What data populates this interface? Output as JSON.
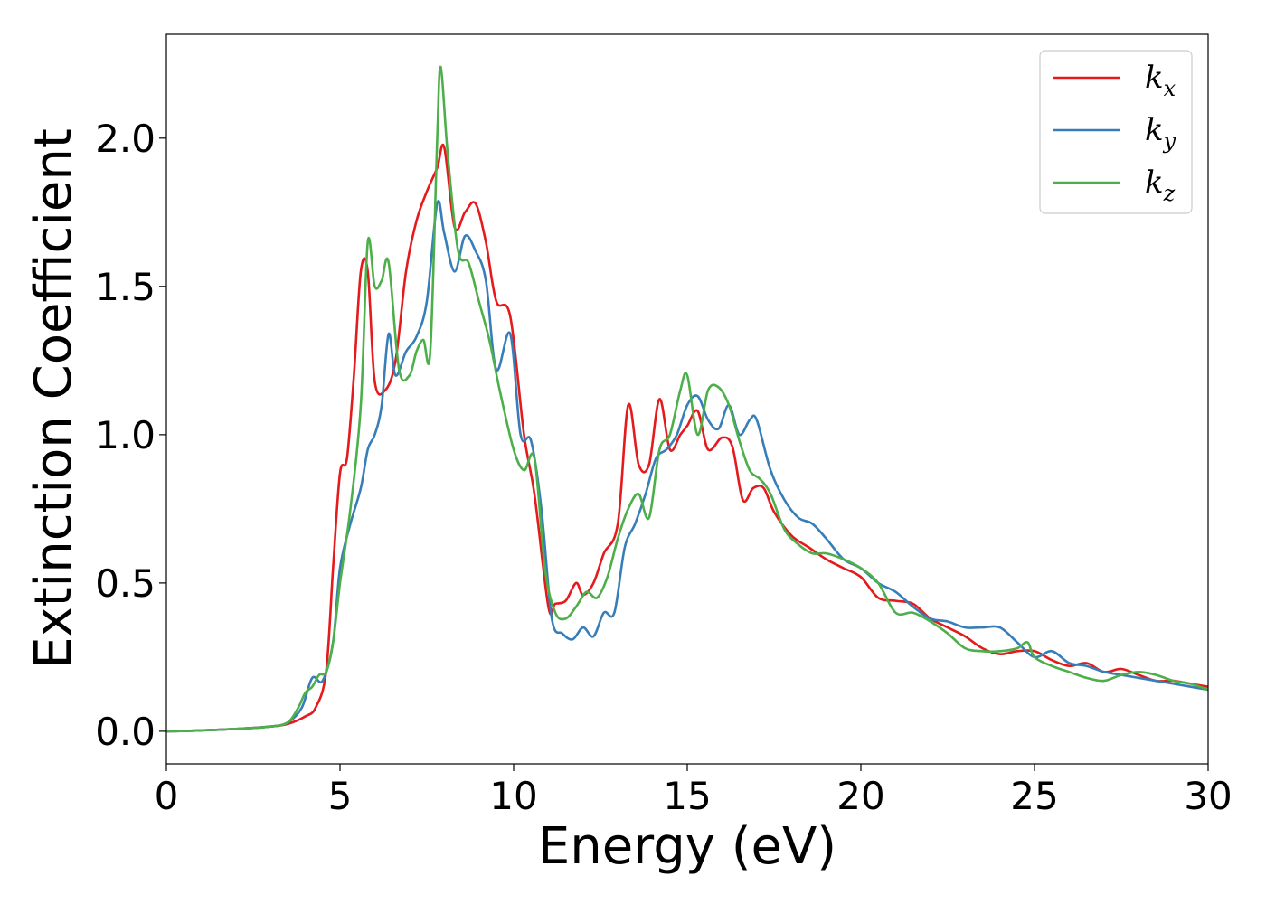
{
  "chart_data": {
    "type": "line",
    "xlabel": "Energy (eV)",
    "ylabel": "Extinction Coefficient",
    "xlim": [
      0,
      30
    ],
    "ylim": [
      -0.11,
      2.35
    ],
    "xticks": [
      0,
      5,
      10,
      15,
      20,
      25,
      30
    ],
    "xtick_labels": [
      "0",
      "5",
      "10",
      "15",
      "20",
      "25",
      "30"
    ],
    "yticks": [
      0.0,
      0.5,
      1.0,
      1.5,
      2.0
    ],
    "ytick_labels": [
      "0.0",
      "0.5",
      "1.0",
      "1.5",
      "2.0"
    ],
    "grid": false,
    "legend_position": "top-right",
    "series": [
      {
        "name": "k_x",
        "legend_base": "k",
        "legend_sub": "x",
        "color": "#e41a1c",
        "x": [
          0,
          1,
          2,
          3,
          3.5,
          4.0,
          4.3,
          4.6,
          4.8,
          5.0,
          5.2,
          5.4,
          5.6,
          5.8,
          6.0,
          6.3,
          6.6,
          6.9,
          7.2,
          7.5,
          7.8,
          8.0,
          8.3,
          8.6,
          8.9,
          9.2,
          9.5,
          9.9,
          10.3,
          10.6,
          11.0,
          11.2,
          11.5,
          11.8,
          12.0,
          12.3,
          12.6,
          13.0,
          13.3,
          13.6,
          13.9,
          14.2,
          14.5,
          14.8,
          15.0,
          15.3,
          15.6,
          16.0,
          16.3,
          16.6,
          16.9,
          17.2,
          17.5,
          18.0,
          18.5,
          19.0,
          19.5,
          20.0,
          20.5,
          21.0,
          21.5,
          22.0,
          22.5,
          23.0,
          23.5,
          24.0,
          24.5,
          25.0,
          25.5,
          26.0,
          26.5,
          27.0,
          27.5,
          28.0,
          28.5,
          29.0,
          29.5,
          30.0
        ],
        "y": [
          0.0,
          0.003,
          0.008,
          0.016,
          0.025,
          0.05,
          0.08,
          0.2,
          0.55,
          0.87,
          0.92,
          1.2,
          1.55,
          1.55,
          1.18,
          1.15,
          1.25,
          1.55,
          1.72,
          1.82,
          1.9,
          1.97,
          1.7,
          1.75,
          1.78,
          1.65,
          1.45,
          1.4,
          1.0,
          0.8,
          0.42,
          0.43,
          0.44,
          0.5,
          0.46,
          0.5,
          0.6,
          0.7,
          1.1,
          0.9,
          0.9,
          1.12,
          0.95,
          1.0,
          1.03,
          1.08,
          0.95,
          0.99,
          0.96,
          0.78,
          0.82,
          0.82,
          0.74,
          0.66,
          0.62,
          0.58,
          0.55,
          0.52,
          0.45,
          0.44,
          0.43,
          0.38,
          0.35,
          0.32,
          0.28,
          0.26,
          0.27,
          0.27,
          0.24,
          0.22,
          0.23,
          0.2,
          0.21,
          0.19,
          0.17,
          0.17,
          0.16,
          0.15
        ]
      },
      {
        "name": "k_y",
        "legend_base": "k",
        "legend_sub": "y",
        "color": "#377eb8",
        "x": [
          0,
          1,
          2,
          3,
          3.5,
          3.9,
          4.2,
          4.5,
          4.8,
          5.0,
          5.3,
          5.6,
          5.8,
          6.0,
          6.2,
          6.4,
          6.6,
          6.9,
          7.2,
          7.5,
          7.8,
          8.0,
          8.3,
          8.6,
          8.9,
          9.2,
          9.5,
          9.9,
          10.2,
          10.5,
          10.8,
          11.1,
          11.4,
          11.7,
          12.0,
          12.3,
          12.6,
          12.9,
          13.2,
          13.5,
          13.8,
          14.1,
          14.4,
          14.7,
          15.0,
          15.3,
          15.6,
          15.9,
          16.2,
          16.5,
          16.8,
          17.0,
          17.4,
          17.8,
          18.2,
          18.6,
          19.0,
          19.5,
          20.0,
          20.5,
          21.0,
          21.5,
          22.0,
          22.5,
          23.0,
          23.5,
          24.0,
          24.5,
          25.0,
          25.5,
          26.0,
          26.5,
          27.0,
          27.5,
          28.0,
          28.5,
          29.0,
          29.5,
          30.0
        ],
        "y": [
          0.0,
          0.003,
          0.008,
          0.016,
          0.03,
          0.08,
          0.18,
          0.17,
          0.3,
          0.55,
          0.7,
          0.82,
          0.95,
          1.0,
          1.1,
          1.34,
          1.2,
          1.28,
          1.33,
          1.45,
          1.78,
          1.68,
          1.55,
          1.67,
          1.62,
          1.52,
          1.22,
          1.34,
          1.0,
          0.98,
          0.75,
          0.38,
          0.33,
          0.31,
          0.35,
          0.32,
          0.4,
          0.4,
          0.62,
          0.7,
          0.8,
          0.92,
          0.95,
          1.0,
          1.1,
          1.13,
          1.05,
          1.02,
          1.1,
          1.0,
          1.05,
          1.05,
          0.88,
          0.78,
          0.72,
          0.7,
          0.65,
          0.58,
          0.55,
          0.5,
          0.47,
          0.42,
          0.38,
          0.37,
          0.35,
          0.35,
          0.35,
          0.3,
          0.25,
          0.27,
          0.23,
          0.22,
          0.2,
          0.19,
          0.18,
          0.17,
          0.16,
          0.15,
          0.14
        ]
      },
      {
        "name": "k_z",
        "legend_base": "k",
        "legend_sub": "z",
        "color": "#4daf4a",
        "x": [
          0,
          1,
          2,
          3,
          3.5,
          3.8,
          4.0,
          4.2,
          4.4,
          4.6,
          4.8,
          5.0,
          5.3,
          5.6,
          5.8,
          6.0,
          6.2,
          6.4,
          6.7,
          7.0,
          7.2,
          7.4,
          7.6,
          7.8,
          7.9,
          8.1,
          8.4,
          8.7,
          9.0,
          9.3,
          9.6,
          10.0,
          10.3,
          10.6,
          10.9,
          11.2,
          11.5,
          11.8,
          12.1,
          12.4,
          12.7,
          13.0,
          13.3,
          13.6,
          13.9,
          14.2,
          14.5,
          14.8,
          15.0,
          15.3,
          15.6,
          15.9,
          16.2,
          16.5,
          16.8,
          17.1,
          17.4,
          17.8,
          18.2,
          18.6,
          19.0,
          19.5,
          20.0,
          20.5,
          21.0,
          21.5,
          22.0,
          22.5,
          23.0,
          23.5,
          24.0,
          24.5,
          24.8,
          25.0,
          25.5,
          26.0,
          26.5,
          27.0,
          27.5,
          28.0,
          28.5,
          29.0,
          29.5,
          30.0
        ],
        "y": [
          0.0,
          0.003,
          0.008,
          0.016,
          0.03,
          0.08,
          0.13,
          0.15,
          0.19,
          0.2,
          0.3,
          0.5,
          0.75,
          1.1,
          1.65,
          1.5,
          1.52,
          1.58,
          1.22,
          1.2,
          1.28,
          1.32,
          1.28,
          2.0,
          2.24,
          1.95,
          1.62,
          1.58,
          1.45,
          1.32,
          1.15,
          0.95,
          0.88,
          0.92,
          0.55,
          0.4,
          0.38,
          0.42,
          0.47,
          0.45,
          0.52,
          0.65,
          0.75,
          0.8,
          0.72,
          0.95,
          1.0,
          1.15,
          1.2,
          1.0,
          1.15,
          1.16,
          1.1,
          0.98,
          0.88,
          0.85,
          0.8,
          0.68,
          0.63,
          0.6,
          0.6,
          0.58,
          0.55,
          0.5,
          0.4,
          0.4,
          0.37,
          0.33,
          0.28,
          0.27,
          0.27,
          0.28,
          0.3,
          0.25,
          0.22,
          0.2,
          0.18,
          0.17,
          0.19,
          0.2,
          0.19,
          0.17,
          0.16,
          0.14
        ]
      }
    ]
  }
}
